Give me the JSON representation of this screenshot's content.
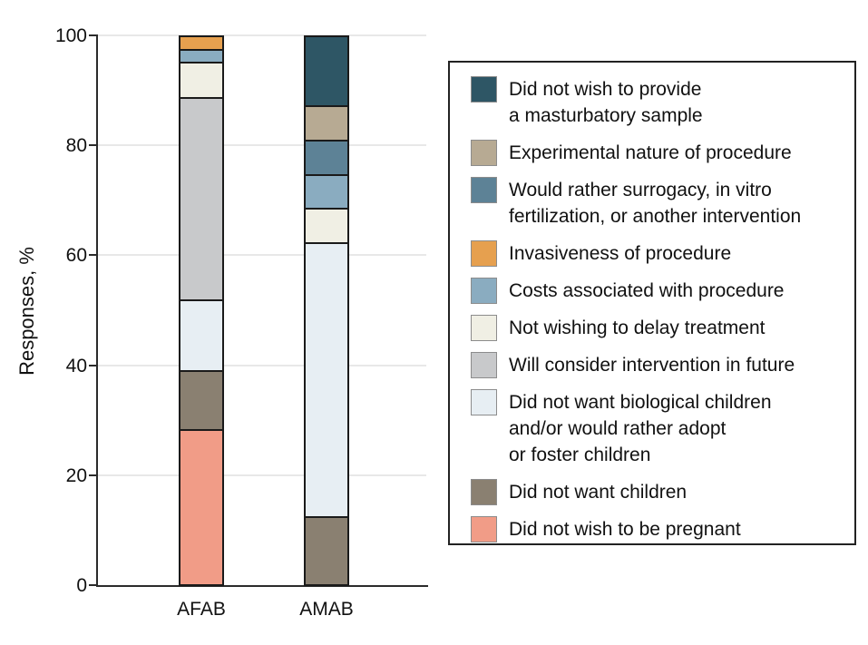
{
  "chart_data": {
    "type": "bar",
    "stacked": true,
    "title": "",
    "xlabel": "",
    "ylabel": "Responses, %",
    "ylim": [
      0,
      100
    ],
    "yticks": [
      0,
      20,
      40,
      60,
      80,
      100
    ],
    "categories": [
      "AFAB",
      "AMAB"
    ],
    "grid": "horizontal",
    "legend_position": "right",
    "colors": {
      "masturbatory": "#2E5665",
      "experimental": "#B7AA93",
      "surrogacy": "#5D8296",
      "invasiveness": "#E6A04F",
      "costs": "#8AACC0",
      "delay": "#F0EFE4",
      "future": "#C8C9CB",
      "biological": "#E7EEF3",
      "children": "#8A8071",
      "pregnant": "#F19C87"
    },
    "series": [
      {
        "key": "masturbatory",
        "name": "Did not wish to provide a masturbatory sample",
        "values": [
          0,
          12.5
        ]
      },
      {
        "key": "experimental",
        "name": "Experimental nature of procedure",
        "values": [
          0,
          6.25
        ]
      },
      {
        "key": "surrogacy",
        "name": "Would rather surrogacy, in vitro fertilization, or another intervention",
        "values": [
          0,
          6.25
        ]
      },
      {
        "key": "invasiveness",
        "name": "Invasiveness of procedure",
        "values": [
          2.2,
          0
        ]
      },
      {
        "key": "costs",
        "name": "Costs associated with procedure",
        "values": [
          2.2,
          6.25
        ]
      },
      {
        "key": "delay",
        "name": "Not wishing to delay treatment",
        "values": [
          6.5,
          6.25
        ]
      },
      {
        "key": "future",
        "name": "Will consider intervention in future",
        "values": [
          37.0,
          0
        ]
      },
      {
        "key": "biological",
        "name": "Did not want biological children and/or would rather adopt or foster children",
        "values": [
          13.0,
          50.0
        ]
      },
      {
        "key": "children",
        "name": "Did not want children",
        "values": [
          10.9,
          12.5
        ]
      },
      {
        "key": "pregnant",
        "name": "Did not wish to be pregnant",
        "values": [
          28.3,
          0
        ]
      }
    ]
  },
  "legend": {
    "items": [
      {
        "key": "masturbatory",
        "lines": [
          "Did not wish to provide",
          "a masturbatory sample"
        ]
      },
      {
        "key": "experimental",
        "lines": [
          "Experimental nature of procedure"
        ]
      },
      {
        "key": "surrogacy",
        "lines": [
          "Would rather surrogacy, in vitro",
          "fertilization, or another intervention"
        ]
      },
      {
        "key": "invasiveness",
        "lines": [
          "Invasiveness of procedure"
        ]
      },
      {
        "key": "costs",
        "lines": [
          "Costs associated with procedure"
        ]
      },
      {
        "key": "delay",
        "lines": [
          "Not wishing to delay treatment"
        ]
      },
      {
        "key": "future",
        "lines": [
          "Will consider intervention in future"
        ]
      },
      {
        "key": "biological",
        "lines": [
          "Did not want biological children",
          "and/or would rather adopt",
          "or foster children"
        ]
      },
      {
        "key": "children",
        "lines": [
          "Did not want children"
        ]
      },
      {
        "key": "pregnant",
        "lines": [
          "Did not wish to be pregnant"
        ]
      }
    ]
  },
  "axis": {
    "x_labels": {
      "afab": "AFAB",
      "amab": "AMAB"
    }
  }
}
